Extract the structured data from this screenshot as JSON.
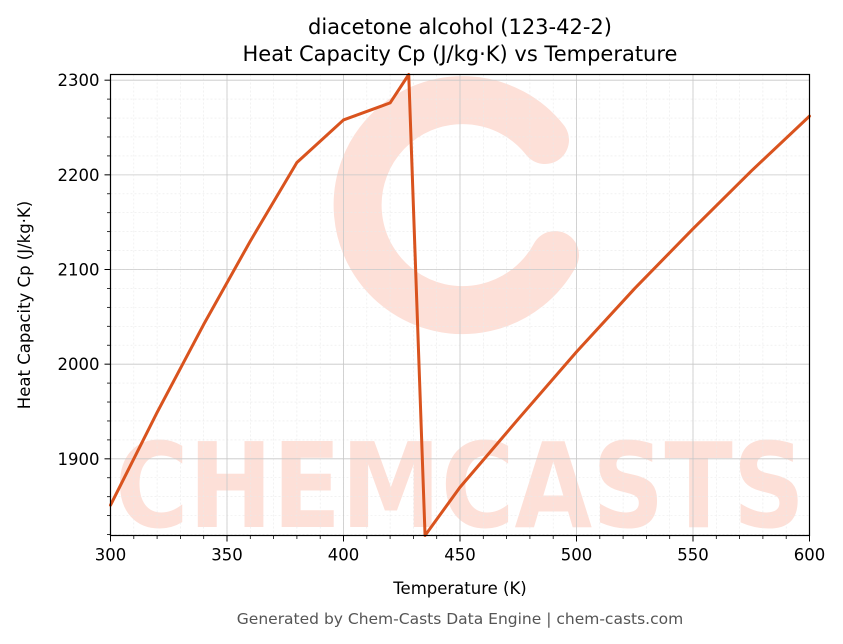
{
  "chart_data": {
    "type": "line",
    "title_line1": "diacetone alcohol (123-42-2)",
    "title_line2": "Heat Capacity Cp (J/kg·K) vs Temperature",
    "xlabel": "Temperature (K)",
    "ylabel": "Heat Capacity Cp (J/kg·K)",
    "xlim": [
      300,
      600
    ],
    "ylim": [
      1819,
      2306
    ],
    "xticks": [
      300,
      350,
      400,
      450,
      500,
      550,
      600
    ],
    "yticks": [
      1900,
      2000,
      2100,
      2200,
      2300
    ],
    "grid": true,
    "series": [
      {
        "color": "#d9531e",
        "x": [
          300,
          320,
          340,
          360,
          380,
          400,
          420,
          428,
          435,
          450,
          475,
          500,
          525,
          550,
          575,
          600
        ],
        "y": [
          1851,
          1949,
          2042,
          2130,
          2213,
          2258,
          2276,
          2306,
          1819,
          1870,
          1942,
          2013,
          2080,
          2143,
          2204,
          2262
        ]
      }
    ]
  },
  "watermark": {
    "text": "CHEMCASTS",
    "color": "#fcd9d0"
  },
  "footer": "Generated by Chem-Casts Data Engine | chem-casts.com"
}
